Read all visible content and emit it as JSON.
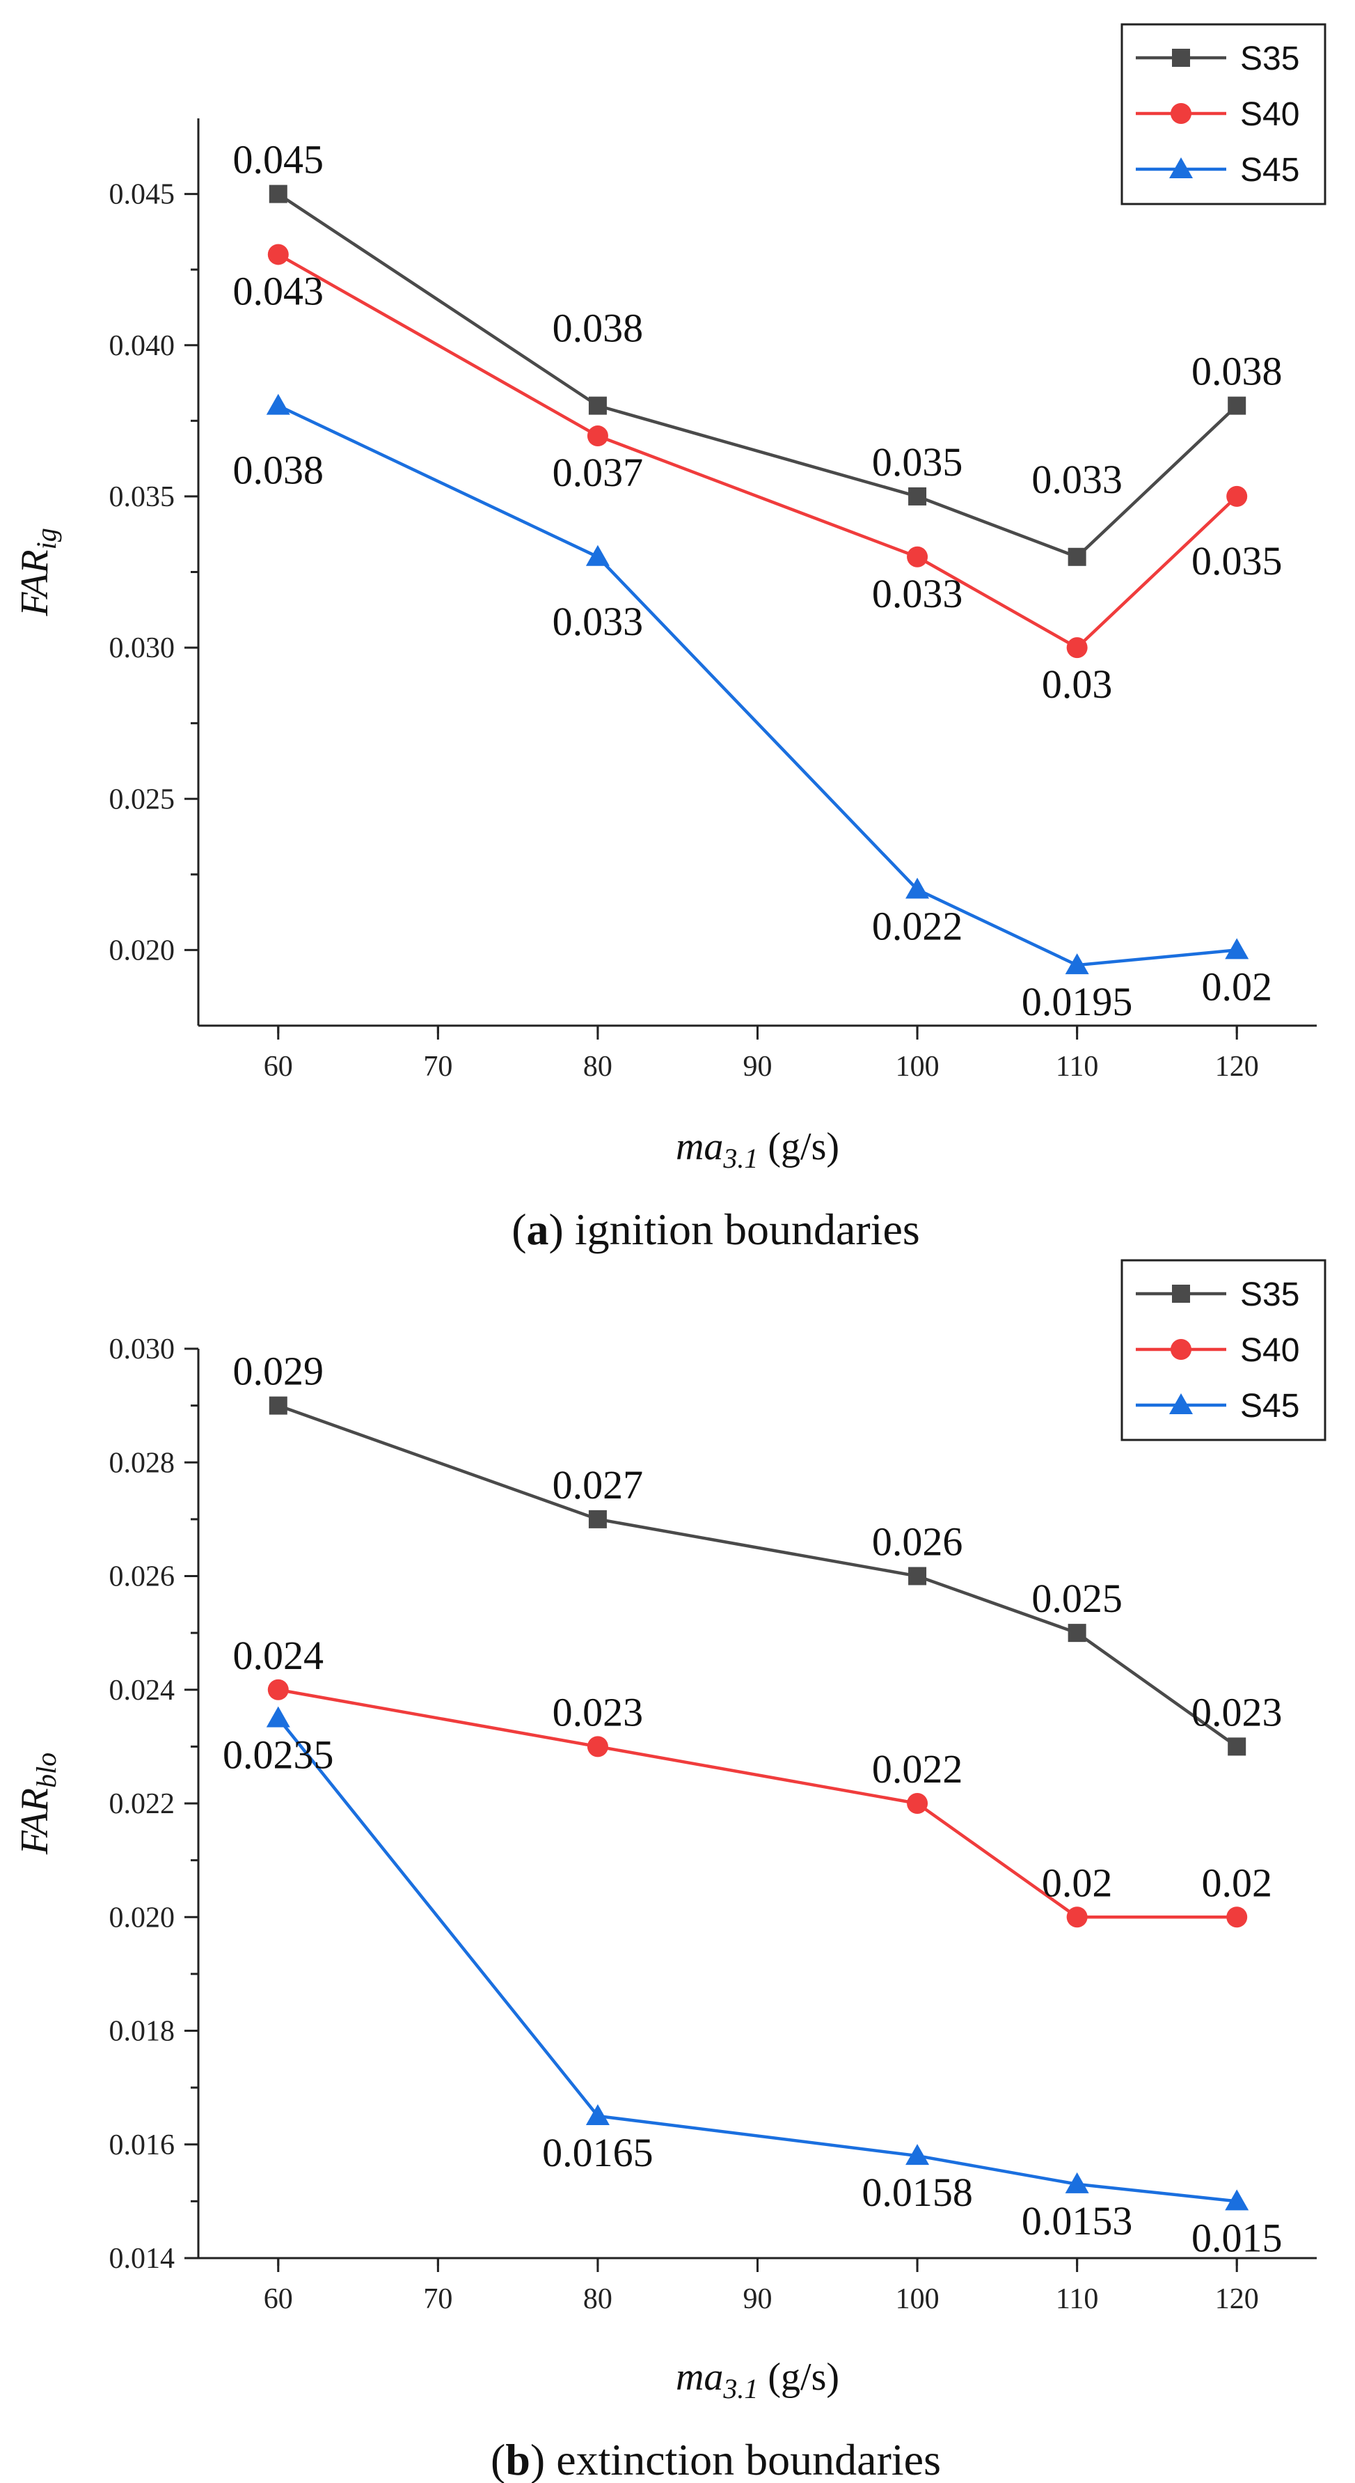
{
  "chart_data": [
    {
      "type": "line",
      "panel_label": "a",
      "caption_rest": ") ignition boundaries",
      "xlabel_main": "ma",
      "xlabel_sub": "3.1",
      "xlabel_unit": " (g/s)",
      "ylabel_main": "FAR",
      "ylabel_sub": "ig",
      "xlim": [
        55,
        125
      ],
      "ylim": [
        0.0175,
        0.0475
      ],
      "x_ticks": [
        60,
        70,
        80,
        90,
        100,
        110,
        120
      ],
      "y_ticks": [
        0.02,
        0.025,
        0.03,
        0.035,
        0.04,
        0.045
      ],
      "y_tick_labels": [
        "0.020",
        "0.025",
        "0.030",
        "0.035",
        "0.040",
        "0.045"
      ],
      "legend_position": "top-right",
      "x": [
        60,
        80,
        100,
        110,
        120
      ],
      "series": [
        {
          "name": "S35",
          "color": "#4a4a4a",
          "marker": "square",
          "values": [
            0.045,
            0.038,
            0.035,
            0.033,
            0.038
          ],
          "labels": [
            "0.045",
            "0.038",
            "0.035",
            "0.033",
            "0.038"
          ],
          "label_pos": [
            "above",
            "above-far",
            "above",
            "above-far",
            "above"
          ]
        },
        {
          "name": "S40",
          "color": "#f03c3c",
          "marker": "circle",
          "values": [
            0.043,
            0.037,
            0.033,
            0.03,
            0.035
          ],
          "labels": [
            "0.043",
            "0.037",
            "0.033",
            "0.03",
            "0.035"
          ],
          "label_pos": [
            "below",
            "below",
            "below",
            "below",
            "below-far"
          ]
        },
        {
          "name": "S45",
          "color": "#1a6fdf",
          "marker": "triangle",
          "values": [
            0.038,
            0.033,
            0.022,
            0.0195,
            0.02
          ],
          "labels": [
            "0.038",
            "0.033",
            "0.022",
            "0.0195",
            "0.02"
          ],
          "label_pos": [
            "below-far",
            "below-far",
            "below",
            "below",
            "below"
          ]
        }
      ]
    },
    {
      "type": "line",
      "panel_label": "b",
      "caption_rest": ") extinction boundaries",
      "xlabel_main": "ma",
      "xlabel_sub": "3.1",
      "xlabel_unit": " (g/s)",
      "ylabel_main": "FAR",
      "ylabel_sub": "blo",
      "xlim": [
        55,
        125
      ],
      "ylim": [
        0.014,
        0.03
      ],
      "x_ticks": [
        60,
        70,
        80,
        90,
        100,
        110,
        120
      ],
      "y_ticks": [
        0.014,
        0.016,
        0.018,
        0.02,
        0.022,
        0.024,
        0.026,
        0.028,
        0.03
      ],
      "y_tick_labels": [
        "0.014",
        "0.016",
        "0.018",
        "0.020",
        "0.022",
        "0.024",
        "0.026",
        "0.028",
        "0.030"
      ],
      "legend_position": "top-right",
      "x": [
        60,
        80,
        100,
        110,
        120
      ],
      "series": [
        {
          "name": "S35",
          "color": "#4a4a4a",
          "marker": "square",
          "values": [
            0.029,
            0.027,
            0.026,
            0.025,
            0.023
          ],
          "labels": [
            "0.029",
            "0.027",
            "0.026",
            "0.025",
            "0.023"
          ],
          "label_pos": [
            "above",
            "above",
            "above",
            "above",
            "above"
          ]
        },
        {
          "name": "S40",
          "color": "#f03c3c",
          "marker": "circle",
          "values": [
            0.024,
            0.023,
            0.022,
            0.02,
            0.02
          ],
          "labels": [
            "0.024",
            "0.023",
            "0.022",
            "0.02",
            "0.02"
          ],
          "label_pos": [
            "above",
            "above",
            "above",
            "above",
            "above"
          ]
        },
        {
          "name": "S45",
          "color": "#1a6fdf",
          "marker": "triangle",
          "values": [
            0.0235,
            0.0165,
            0.0158,
            0.0153,
            0.015
          ],
          "labels": [
            "0.0235",
            "0.0165",
            "0.0158",
            "0.0153",
            "0.015"
          ],
          "label_pos": [
            "below",
            "below",
            "below",
            "below",
            "below"
          ]
        }
      ]
    }
  ]
}
